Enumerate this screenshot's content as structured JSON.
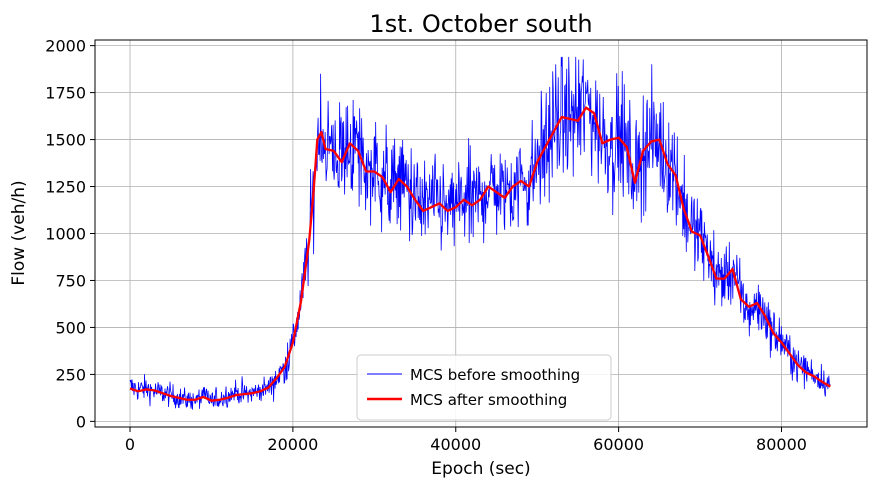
{
  "chart_data": {
    "type": "line",
    "title": "1st. October south",
    "xlabel": "Epoch (sec)",
    "ylabel": "Flow (veh/h)",
    "xlim": [
      -4300,
      90500
    ],
    "ylim": [
      -30,
      2030
    ],
    "xticks": [
      0,
      20000,
      40000,
      60000,
      80000
    ],
    "xtick_labels": [
      "0",
      "20000",
      "40000",
      "60000",
      "80000"
    ],
    "yticks": [
      0,
      250,
      500,
      750,
      1000,
      1250,
      1500,
      1750,
      2000
    ],
    "ytick_labels": [
      "0",
      "250",
      "500",
      "750",
      "1000",
      "1250",
      "1500",
      "1750",
      "2000"
    ],
    "grid": true,
    "legend": "lower center",
    "series": [
      {
        "name": "MCS before smoothing",
        "color": "#0000ff",
        "style": "thin-noisy",
        "x": [
          0,
          1000,
          2000,
          3000,
          4000,
          5000,
          6000,
          7000,
          8000,
          9000,
          10000,
          11000,
          12000,
          13000,
          14000,
          15000,
          16000,
          17000,
          18000,
          19000,
          20000,
          21000,
          22000,
          22500,
          23000,
          23500,
          24000,
          25000,
          26000,
          27000,
          28000,
          29000,
          30000,
          31000,
          32000,
          33000,
          34000,
          35000,
          36000,
          37000,
          38000,
          39000,
          40000,
          41000,
          42000,
          43000,
          44000,
          45000,
          46000,
          47000,
          48000,
          49000,
          50000,
          51000,
          52000,
          53000,
          54000,
          55000,
          56000,
          57000,
          58000,
          59000,
          60000,
          61000,
          62000,
          63000,
          64000,
          65000,
          66000,
          67000,
          68000,
          69000,
          70000,
          71000,
          72000,
          73000,
          74000,
          75000,
          76000,
          77000,
          78000,
          79000,
          80000,
          81000,
          82000,
          83000,
          84000,
          85000,
          86000
        ],
        "y": [
          185,
          170,
          175,
          160,
          150,
          140,
          125,
          115,
          110,
          135,
          110,
          120,
          140,
          155,
          145,
          150,
          165,
          180,
          230,
          290,
          420,
          640,
          960,
          1200,
          1500,
          1600,
          1450,
          1450,
          1400,
          1480,
          1440,
          1330,
          1350,
          1300,
          1230,
          1300,
          1250,
          1180,
          1140,
          1170,
          1160,
          1110,
          1150,
          1190,
          1160,
          1180,
          1260,
          1230,
          1210,
          1250,
          1300,
          1270,
          1380,
          1460,
          1560,
          1620,
          1620,
          1650,
          1680,
          1620,
          1520,
          1480,
          1510,
          1450,
          1300,
          1460,
          1500,
          1480,
          1380,
          1330,
          1150,
          1030,
          980,
          900,
          780,
          760,
          820,
          660,
          580,
          620,
          560,
          470,
          430,
          360,
          300,
          280,
          250,
          220,
          190
        ]
      },
      {
        "name": "MCS after smoothing",
        "color": "#ff0000",
        "x": [
          0,
          1000,
          2000,
          3000,
          4000,
          5000,
          6000,
          7000,
          8000,
          9000,
          10000,
          11000,
          12000,
          13000,
          14000,
          15000,
          16000,
          17000,
          18000,
          19000,
          20000,
          21000,
          22000,
          22500,
          23000,
          23500,
          24000,
          25000,
          26000,
          27000,
          28000,
          29000,
          30000,
          31000,
          32000,
          33000,
          34000,
          35000,
          36000,
          37000,
          38000,
          39000,
          40000,
          41000,
          42000,
          43000,
          44000,
          45000,
          46000,
          47000,
          48000,
          49000,
          50000,
          51000,
          52000,
          53000,
          54000,
          55000,
          56000,
          57000,
          58000,
          59000,
          60000,
          61000,
          62000,
          63000,
          64000,
          65000,
          66000,
          67000,
          68000,
          69000,
          70000,
          71000,
          72000,
          73000,
          74000,
          75000,
          76000,
          77000,
          78000,
          79000,
          80000,
          81000,
          82000,
          83000,
          84000,
          85000,
          86000
        ],
        "y": [
          175,
          160,
          170,
          165,
          150,
          135,
          125,
          115,
          115,
          130,
          110,
          115,
          125,
          140,
          145,
          150,
          160,
          180,
          230,
          290,
          420,
          640,
          960,
          1200,
          1500,
          1540,
          1450,
          1440,
          1380,
          1480,
          1440,
          1330,
          1330,
          1300,
          1220,
          1290,
          1250,
          1180,
          1120,
          1140,
          1160,
          1120,
          1140,
          1180,
          1150,
          1180,
          1250,
          1220,
          1190,
          1250,
          1280,
          1250,
          1380,
          1460,
          1540,
          1620,
          1610,
          1600,
          1670,
          1640,
          1480,
          1500,
          1510,
          1460,
          1270,
          1440,
          1490,
          1500,
          1370,
          1310,
          1130,
          1010,
          990,
          880,
          760,
          760,
          810,
          650,
          610,
          630,
          560,
          470,
          420,
          360,
          300,
          260,
          240,
          210,
          185
        ]
      }
    ]
  }
}
